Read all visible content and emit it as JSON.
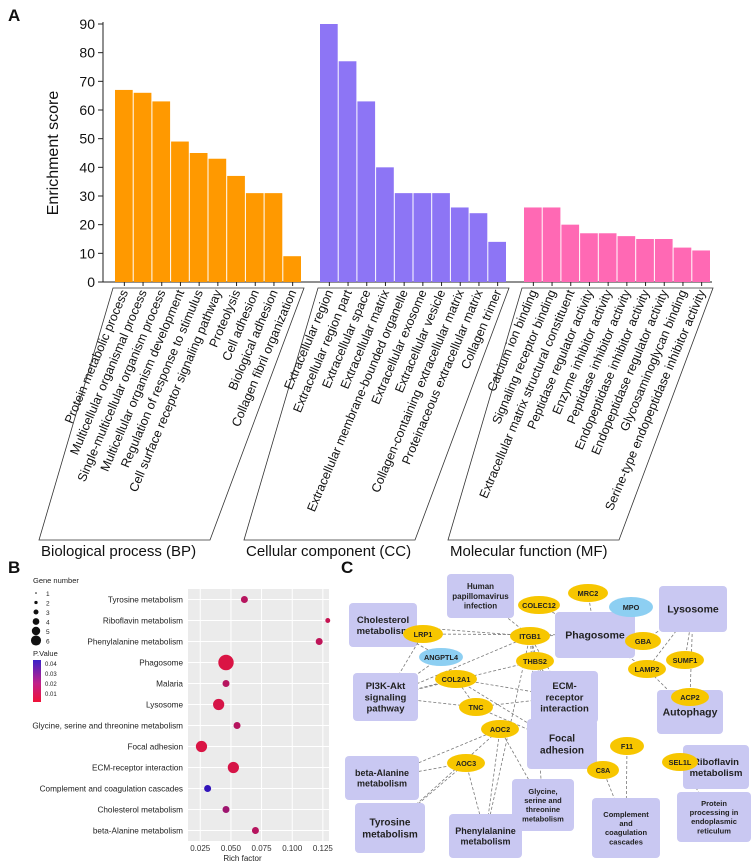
{
  "panel_labels": {
    "a": "A",
    "b": "B",
    "c": "C"
  },
  "colors": {
    "bp": "#ff9900",
    "cc": "#8d75f5",
    "mf": "#ff69b4",
    "node_box": "#c9c8f2",
    "node_gene": "#f7c600",
    "node_blue": "#8dcff2",
    "edge": "#7a7a7a"
  },
  "chart_data": [
    {
      "type": "bar",
      "ylabel": "Enrichment score",
      "ylim": [
        0,
        90
      ],
      "yticks": [
        0,
        10,
        20,
        30,
        40,
        50,
        60,
        70,
        80,
        90
      ],
      "grid": false,
      "groups": [
        {
          "name": "Biological process (BP)",
          "color": "#ff9900",
          "categories": [
            "Protein metabolic process",
            "Multicellular organismal process",
            "Single-multicellular organism process",
            "Multicellular organism development",
            "Regulation of response to stimulus",
            "Cell surface receptor signaling pathway",
            "Proteolysis",
            "Cell adhesion",
            "Biological adhesion",
            "Collagen fibril organization"
          ],
          "values": [
            67,
            66,
            63,
            49,
            45,
            43,
            37,
            31,
            31,
            9
          ]
        },
        {
          "name": "Cellular component (CC)",
          "color": "#8d75f5",
          "categories": [
            "Extracellular region",
            "Extracellular region part",
            "Extracellular space",
            "Extracellular matrix",
            "Extracellular membrane-bounded organelle",
            "Extracellular exosome",
            "Extracellular vesicle",
            "Collagen-containing extracellular matrix",
            "Proteinaceous extracellular matrix",
            "Collagen trimer"
          ],
          "values": [
            90,
            77,
            63,
            40,
            31,
            31,
            31,
            26,
            24,
            14
          ]
        },
        {
          "name": "Molecular function (MF)",
          "color": "#ff69b4",
          "categories": [
            "Calcium ion binding",
            "Signaling receptor binding",
            "Extracellular matrix structural constituent",
            "Peptidase regulator activity",
            "Enzyme inhibitor activity",
            "Peptidase inhibitor activity",
            "Endopeptidase inhibitor activity",
            "Endopeptidase regulator activity",
            "Glycosaminoglycan binding",
            "Serine-type endopeptidase inhibitor activity"
          ],
          "values": [
            26,
            26,
            20,
            17,
            17,
            16,
            15,
            15,
            12,
            11
          ]
        }
      ]
    },
    {
      "type": "scatter",
      "xlabel": "Rich factor",
      "ylabel": "",
      "xlim": [
        0.015,
        0.13
      ],
      "xticks": [
        0.025,
        0.05,
        0.075,
        0.1,
        0.125
      ],
      "xtick_labels": [
        "0.025",
        "0.050",
        "0.075",
        "0.100",
        "0.125"
      ],
      "grid": true,
      "categories": [
        "Tyrosine metabolism",
        "Riboflavin metabolism",
        "Phenylalanine metabolism",
        "Phagosome",
        "Malaria",
        "Lysosome",
        "Glycine, serine and threonine metabolism",
        "Focal adhesion",
        "ECM-receptor interaction",
        "Complement and coagulation cascades",
        "Cholesterol metabolism",
        "beta-Alanine metabolism"
      ],
      "rich_factor": [
        0.061,
        0.129,
        0.122,
        0.046,
        0.046,
        0.04,
        0.055,
        0.026,
        0.052,
        0.031,
        0.046,
        0.07
      ],
      "gene_number": [
        2,
        1,
        2,
        6,
        2,
        4,
        2,
        4,
        4,
        2,
        2,
        2
      ],
      "p_value": [
        0.012,
        0.008,
        0.01,
        0.003,
        0.012,
        0.004,
        0.012,
        0.003,
        0.004,
        0.045,
        0.018,
        0.012
      ],
      "size_legend": {
        "title": "Gene number",
        "labels": [
          "1",
          "2",
          "3",
          "4",
          "5",
          "6"
        ]
      },
      "color_legend": {
        "title": "P.Value",
        "ticks": [
          "0.04",
          "0.03",
          "0.02",
          "0.01"
        ]
      }
    }
  ],
  "network": {
    "pathways": [
      "Human papillomavirus infection",
      "Cholesterol metabolism",
      "Phagosome",
      "Lysosome",
      "PI3K-Akt signaling pathway",
      "ECM-receptor interaction",
      "Autophagy",
      "beta-Alanine metabolism",
      "Focal adhesion",
      "Riboflavin metabolism",
      "Tyrosine metabolism",
      "Glycine, serine and threonine metabolism",
      "Phenylalanine metabolism",
      "Complement and coagulation cascades",
      "Protein processing in endoplasmic reticulum"
    ],
    "genes": [
      "COLEC12",
      "MRC2",
      "MPO",
      "LRP1",
      "ITGB1",
      "GBA",
      "ANGPTL4",
      "LAMP2",
      "SUMF1",
      "THBS2",
      "COL2A1",
      "ACP2",
      "TNC",
      "AOC2",
      "F11",
      "AOC3",
      "SEL1L",
      "C8A"
    ]
  }
}
